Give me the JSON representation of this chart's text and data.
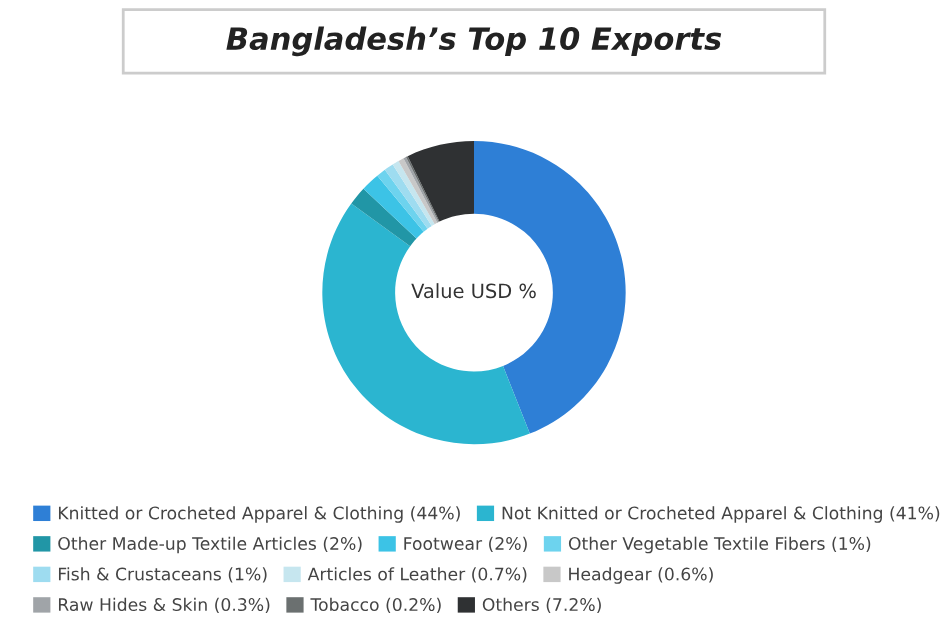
{
  "chart_data": {
    "type": "donut",
    "title": "Bangladesh’s Top 10 Exports",
    "categories": [
      "Knitted or Crocheted Apparel & Clothing (44%)",
      "Not Knitted or Crocheted Apparel & Clothing (41%)",
      "Other Made-up Textile Articles (2%)",
      "Footwear (2%)",
      "Other Vegetable Textile Fibers (1%)",
      "Fish & Crustaceans (1%)",
      "Articles of Leather (0.7%)",
      "Headgear (0.6%)",
      "Raw Hides & Skin (0.3%)",
      "Tobacco (0.2%)",
      "Others (7.2%)"
    ],
    "values": [
      44,
      41,
      2,
      2,
      1,
      1,
      0.7,
      0.6,
      0.3,
      0.2,
      7.2
    ],
    "colors": [
      "#2e7fd6",
      "#2bb5d0",
      "#2196a6",
      "#3cc3e6",
      "#6dd3ee",
      "#9edcf0",
      "#c6e6ef",
      "#c8c8c8",
      "#a0a4a8",
      "#6b7070",
      "#2f3133"
    ],
    "annotations": [
      "Value USD %"
    ],
    "legend": "bottom"
  }
}
